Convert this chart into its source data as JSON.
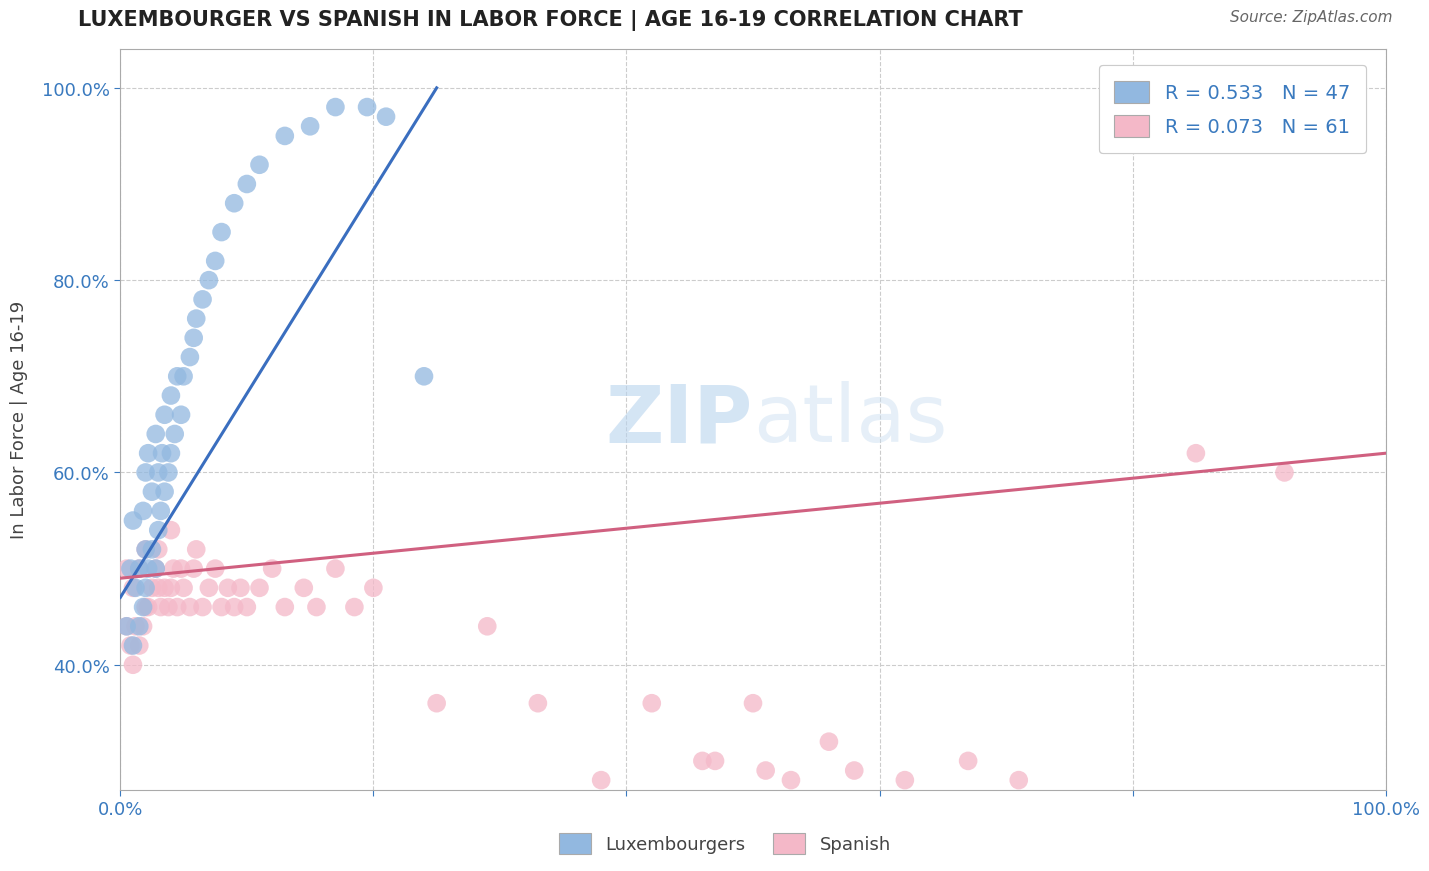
{
  "title": "LUXEMBOURGER VS SPANISH IN LABOR FORCE | AGE 16-19 CORRELATION CHART",
  "source": "Source: ZipAtlas.com",
  "ylabel": "In Labor Force | Age 16-19",
  "xlim": [
    0.0,
    1.0
  ],
  "ylim": [
    0.27,
    1.04
  ],
  "blue_R": 0.533,
  "blue_N": 47,
  "pink_R": 0.073,
  "pink_N": 61,
  "blue_color": "#92b8e0",
  "pink_color": "#f4b8c8",
  "blue_line_color": "#3a6ebf",
  "pink_line_color": "#d06080",
  "legend_label_blue": "Luxembourgers",
  "legend_label_pink": "Spanish",
  "blue_x": [
    0.005,
    0.008,
    0.01,
    0.01,
    0.012,
    0.015,
    0.015,
    0.018,
    0.018,
    0.02,
    0.02,
    0.02,
    0.022,
    0.022,
    0.025,
    0.025,
    0.028,
    0.028,
    0.03,
    0.03,
    0.032,
    0.033,
    0.035,
    0.035,
    0.038,
    0.04,
    0.04,
    0.043,
    0.045,
    0.048,
    0.05,
    0.055,
    0.058,
    0.06,
    0.065,
    0.07,
    0.075,
    0.08,
    0.09,
    0.1,
    0.11,
    0.13,
    0.15,
    0.17,
    0.195,
    0.21,
    0.24
  ],
  "blue_y": [
    0.44,
    0.5,
    0.42,
    0.55,
    0.48,
    0.44,
    0.5,
    0.46,
    0.56,
    0.48,
    0.52,
    0.6,
    0.5,
    0.62,
    0.52,
    0.58,
    0.5,
    0.64,
    0.54,
    0.6,
    0.56,
    0.62,
    0.58,
    0.66,
    0.6,
    0.62,
    0.68,
    0.64,
    0.7,
    0.66,
    0.7,
    0.72,
    0.74,
    0.76,
    0.78,
    0.8,
    0.82,
    0.85,
    0.88,
    0.9,
    0.92,
    0.95,
    0.96,
    0.98,
    0.98,
    0.97,
    0.7
  ],
  "pink_x": [
    0.005,
    0.005,
    0.008,
    0.01,
    0.01,
    0.012,
    0.015,
    0.015,
    0.018,
    0.02,
    0.02,
    0.022,
    0.025,
    0.028,
    0.03,
    0.03,
    0.032,
    0.035,
    0.038,
    0.04,
    0.04,
    0.042,
    0.045,
    0.048,
    0.05,
    0.055,
    0.058,
    0.06,
    0.065,
    0.07,
    0.075,
    0.08,
    0.085,
    0.09,
    0.095,
    0.1,
    0.11,
    0.12,
    0.13,
    0.145,
    0.155,
    0.17,
    0.185,
    0.2,
    0.25,
    0.29,
    0.33,
    0.38,
    0.42,
    0.46,
    0.47,
    0.5,
    0.51,
    0.53,
    0.56,
    0.58,
    0.62,
    0.67,
    0.71,
    0.85,
    0.92
  ],
  "pink_y": [
    0.44,
    0.5,
    0.42,
    0.4,
    0.48,
    0.44,
    0.42,
    0.5,
    0.44,
    0.46,
    0.52,
    0.46,
    0.48,
    0.5,
    0.48,
    0.52,
    0.46,
    0.48,
    0.46,
    0.48,
    0.54,
    0.5,
    0.46,
    0.5,
    0.48,
    0.46,
    0.5,
    0.52,
    0.46,
    0.48,
    0.5,
    0.46,
    0.48,
    0.46,
    0.48,
    0.46,
    0.48,
    0.5,
    0.46,
    0.48,
    0.46,
    0.5,
    0.46,
    0.48,
    0.36,
    0.44,
    0.36,
    0.28,
    0.36,
    0.3,
    0.3,
    0.36,
    0.29,
    0.28,
    0.32,
    0.29,
    0.28,
    0.3,
    0.28,
    0.62,
    0.6
  ],
  "blue_trend_x0": 0.0,
  "blue_trend_y0": 0.47,
  "blue_trend_x1": 0.25,
  "blue_trend_y1": 1.0,
  "pink_trend_x0": 0.0,
  "pink_trend_y0": 0.49,
  "pink_trend_x1": 1.0,
  "pink_trend_y1": 0.62
}
